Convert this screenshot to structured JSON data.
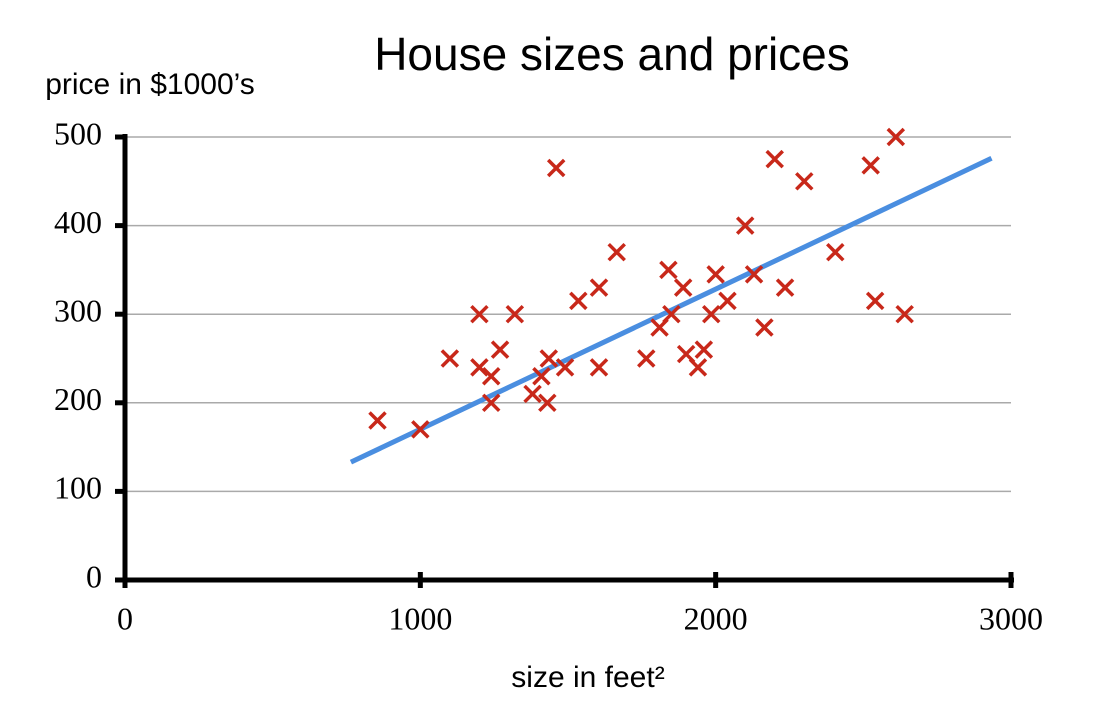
{
  "chart_data": {
    "type": "scatter",
    "title": "House sizes and prices",
    "ylabel": "price in $1000’s",
    "xlabel": "size in feet²",
    "x": [
      855,
      1000,
      1100,
      1200,
      1200,
      1240,
      1240,
      1270,
      1320,
      1380,
      1410,
      1430,
      1435,
      1460,
      1490,
      1535,
      1605,
      1605,
      1665,
      1765,
      1810,
      1840,
      1850,
      1890,
      1900,
      1940,
      1960,
      1985,
      2000,
      2040,
      2100,
      2130,
      2165,
      2200,
      2235,
      2300,
      2405,
      2525,
      2540,
      2610,
      2640
    ],
    "values": [
      180,
      170,
      250,
      300,
      240,
      230,
      200,
      260,
      300,
      210,
      230,
      200,
      250,
      465,
      240,
      315,
      330,
      240,
      370,
      250,
      285,
      350,
      300,
      330,
      255,
      240,
      260,
      300,
      345,
      315,
      400,
      345,
      285,
      475,
      330,
      450,
      370,
      468,
      315,
      500,
      300
    ],
    "color": "#c8281a",
    "fit": {
      "x": [
        765,
        2934
      ],
      "y": [
        133,
        476
      ],
      "color": "#4a8ee0"
    },
    "xlim": [
      0,
      3000
    ],
    "xticks": [
      0,
      1000,
      2000,
      3000
    ],
    "ylim": [
      0,
      500
    ],
    "yticks": [
      0,
      100,
      200,
      300,
      400,
      500
    ],
    "grid": true
  }
}
